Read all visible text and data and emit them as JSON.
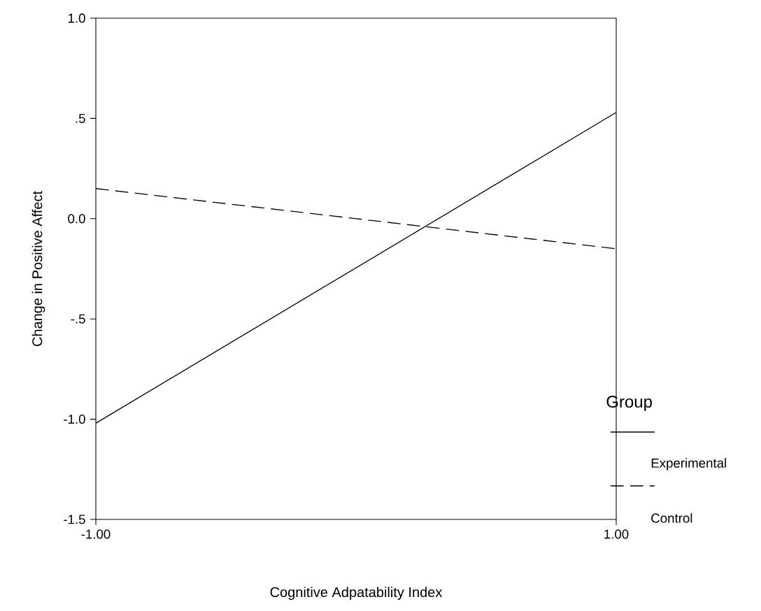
{
  "chart_data": {
    "type": "line",
    "xlabel": "Cognitive Adpatability Index",
    "ylabel": "Change in Positive Affect",
    "legend_title": "Group",
    "legend": "right",
    "x": [
      -1,
      1
    ],
    "series": [
      {
        "name": "Experimental",
        "color": "#000000",
        "values": [
          -1.02,
          0.53
        ],
        "line_style": "solid"
      },
      {
        "name": "Control",
        "color": "#000000",
        "values": [
          0.15,
          -0.15
        ],
        "line_style": "dashed"
      }
    ],
    "xlim": [
      -1,
      1
    ],
    "ylim": [
      -1.5,
      1.0
    ],
    "xticks": [
      {
        "value": -1,
        "label": "-1.00"
      },
      {
        "value": 1,
        "label": "1.00"
      }
    ],
    "yticks": [
      {
        "value": -1.5,
        "label": "-1.5"
      },
      {
        "value": -1.0,
        "label": "-1.0"
      },
      {
        "value": -0.5,
        "label": "-.5"
      },
      {
        "value": 0.0,
        "label": "0.0"
      },
      {
        "value": 0.5,
        "label": ".5"
      },
      {
        "value": 1.0,
        "label": "1.0"
      }
    ],
    "grid": false,
    "marker": "none"
  }
}
